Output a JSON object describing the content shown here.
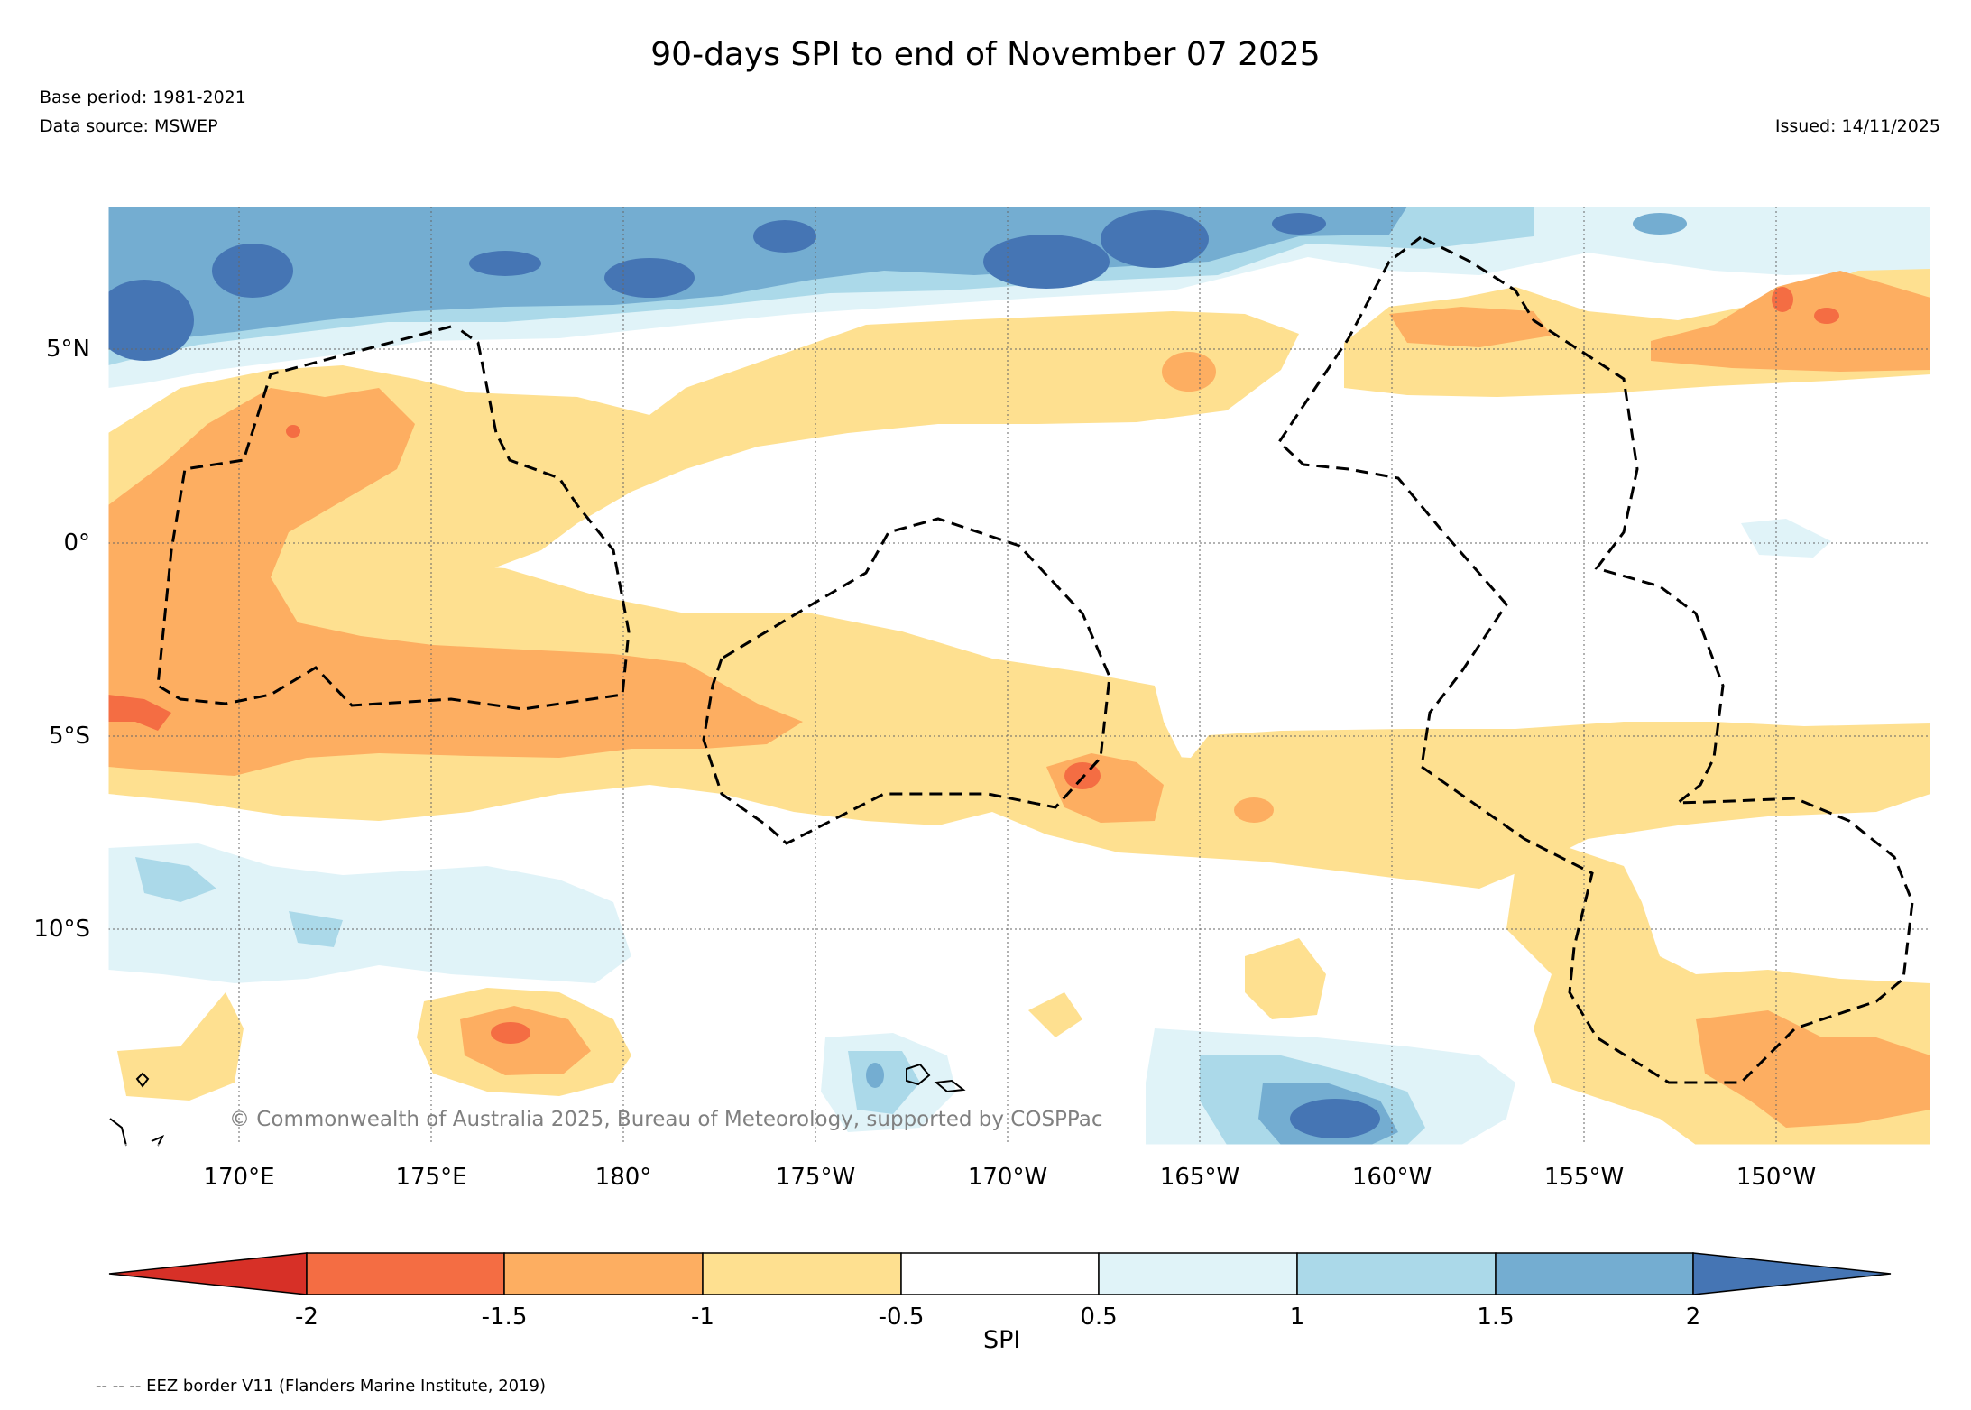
{
  "title": "90-days SPI to end of November 07 2025",
  "base_period": "Base period: 1981-2021",
  "data_source": "Data source: MSWEP",
  "issued": "Issued: 14/11/2025",
  "copyright": "© Commonwealth of Australia 2025, Bureau of Meteorology, supported by COSPPac",
  "footnote": "-- -- -- EEZ border V11 (Flanders Marine Institute, 2019)",
  "map": {
    "lat_labels": [
      "5°N",
      "0°",
      "5°S",
      "10°S"
    ],
    "lon_labels": [
      "170°E",
      "175°E",
      "180°",
      "175°W",
      "170°W",
      "165°W",
      "160°W",
      "155°W",
      "150°W"
    ]
  },
  "colorbar": {
    "label": "SPI",
    "ticks": [
      "-2",
      "-1.5",
      "-1",
      "-0.5",
      "0.5",
      "1",
      "1.5",
      "2"
    ],
    "colors": {
      "lt_-2": "#d73027",
      "-2_-1.5": "#f46d43",
      "-1.5_-1": "#fdae61",
      "-1_-0.5": "#fee090",
      "-0.5_0.5": "#ffffff",
      "0.5_1": "#e0f3f8",
      "1_1.5": "#abd9e9",
      "1.5_2": "#74add1",
      "gt_2": "#4575b4"
    }
  }
}
